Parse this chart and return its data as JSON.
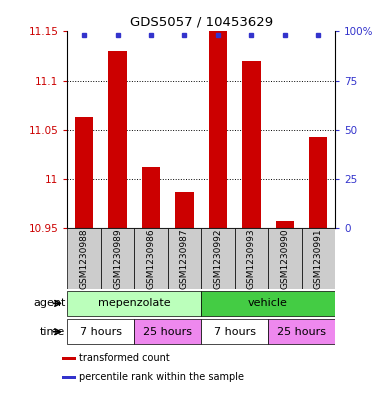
{
  "title": "GDS5057 / 10453629",
  "samples": [
    "GSM1230988",
    "GSM1230989",
    "GSM1230986",
    "GSM1230987",
    "GSM1230992",
    "GSM1230993",
    "GSM1230990",
    "GSM1230991"
  ],
  "bar_values": [
    11.063,
    11.13,
    11.012,
    10.987,
    11.15,
    11.12,
    10.957,
    11.043
  ],
  "ylim": [
    10.95,
    11.15
  ],
  "yticks": [
    10.95,
    11.0,
    11.05,
    11.1,
    11.15
  ],
  "ytick_labels": [
    "10.95",
    "11",
    "11.05",
    "11.1",
    "11.15"
  ],
  "right_ytick_labels": [
    "0",
    "25",
    "50",
    "75",
    "100%"
  ],
  "bar_color": "#cc0000",
  "blue_color": "#3333cc",
  "bar_bottom": 10.95,
  "agent_groups": [
    {
      "label": "mepenzolate",
      "start": 0,
      "end": 4,
      "color": "#bbffbb"
    },
    {
      "label": "vehicle",
      "start": 4,
      "end": 8,
      "color": "#44cc44"
    }
  ],
  "time_groups": [
    {
      "label": "7 hours",
      "start": 0,
      "end": 2,
      "color": "#ffffff"
    },
    {
      "label": "25 hours",
      "start": 2,
      "end": 4,
      "color": "#ee88ee"
    },
    {
      "label": "7 hours",
      "start": 4,
      "end": 6,
      "color": "#ffffff"
    },
    {
      "label": "25 hours",
      "start": 6,
      "end": 8,
      "color": "#ee88ee"
    }
  ],
  "agent_label": "agent",
  "time_label": "time",
  "legend_items": [
    {
      "color": "#cc0000",
      "label": "transformed count"
    },
    {
      "color": "#3333cc",
      "label": "percentile rank within the sample"
    }
  ],
  "background_color": "#ffffff",
  "tick_color_left": "#cc0000",
  "tick_color_right": "#3333cc",
  "sample_box_color": "#cccccc",
  "grid_color": "#000000"
}
